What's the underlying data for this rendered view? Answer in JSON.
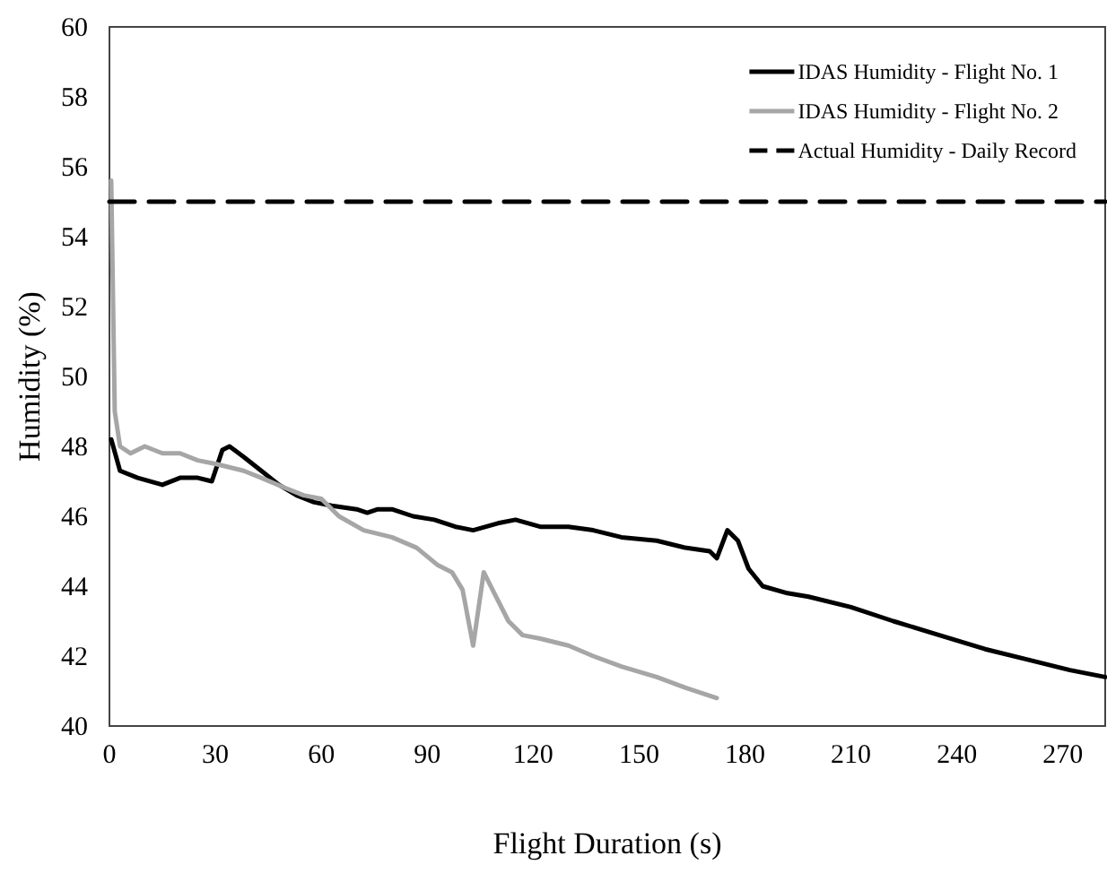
{
  "chart_data": {
    "type": "line",
    "xlabel": "Flight Duration (s)",
    "ylabel": "Humidity (%)",
    "xlim": [
      0,
      282
    ],
    "xticks": [
      0,
      30,
      60,
      90,
      120,
      150,
      180,
      210,
      240,
      270
    ],
    "ylim": [
      40,
      60
    ],
    "yticks": [
      40,
      42,
      44,
      46,
      48,
      50,
      52,
      54,
      56,
      58,
      60
    ],
    "grid": false,
    "legend": "top right",
    "marker": "none",
    "series": [
      {
        "name": "IDAS Humidity - Flight No. 1",
        "color": "#000000",
        "line_style": "solid",
        "x": [
          0.5,
          3,
          8,
          15,
          20,
          25,
          29,
          32,
          34,
          38,
          43,
          48,
          53,
          58,
          63,
          70,
          73,
          76,
          80,
          86,
          92,
          98,
          103,
          110,
          115,
          122,
          130,
          137,
          145,
          155,
          163,
          170,
          172,
          175,
          178,
          181,
          185,
          192,
          198,
          210,
          222,
          235,
          248,
          260,
          272,
          282
        ],
        "values": [
          48.2,
          47.3,
          47.1,
          46.9,
          47.1,
          47.1,
          47.0,
          47.9,
          48.0,
          47.7,
          47.3,
          46.9,
          46.6,
          46.4,
          46.3,
          46.2,
          46.1,
          46.2,
          46.2,
          46.0,
          45.9,
          45.7,
          45.6,
          45.8,
          45.9,
          45.7,
          45.7,
          45.6,
          45.4,
          45.3,
          45.1,
          45.0,
          44.8,
          45.6,
          45.3,
          44.5,
          44.0,
          43.8,
          43.7,
          43.4,
          43.0,
          42.6,
          42.2,
          41.9,
          41.6,
          41.4
        ]
      },
      {
        "name": "IDAS Humidity - Flight No. 2",
        "color": "#a6a6a6",
        "line_style": "solid",
        "x": [
          0.5,
          1.5,
          3,
          6,
          10,
          15,
          20,
          25,
          30,
          38,
          43,
          50,
          55,
          60,
          65,
          72,
          80,
          87,
          93,
          97,
          100,
          103,
          106,
          109,
          113,
          117,
          122,
          130,
          137,
          145,
          155,
          163,
          172
        ],
        "values": [
          55.6,
          49.0,
          48.0,
          47.8,
          48.0,
          47.8,
          47.8,
          47.6,
          47.5,
          47.3,
          47.1,
          46.8,
          46.6,
          46.5,
          46.0,
          45.6,
          45.4,
          45.1,
          44.6,
          44.4,
          43.9,
          42.3,
          44.4,
          43.8,
          43.0,
          42.6,
          42.5,
          42.3,
          42.0,
          41.7,
          41.4,
          41.1,
          40.8
        ]
      },
      {
        "name": "Actual Humidity - Daily Record",
        "color": "#000000",
        "line_style": "dashed",
        "x": [
          0,
          282
        ],
        "values": [
          55,
          55
        ]
      }
    ]
  }
}
